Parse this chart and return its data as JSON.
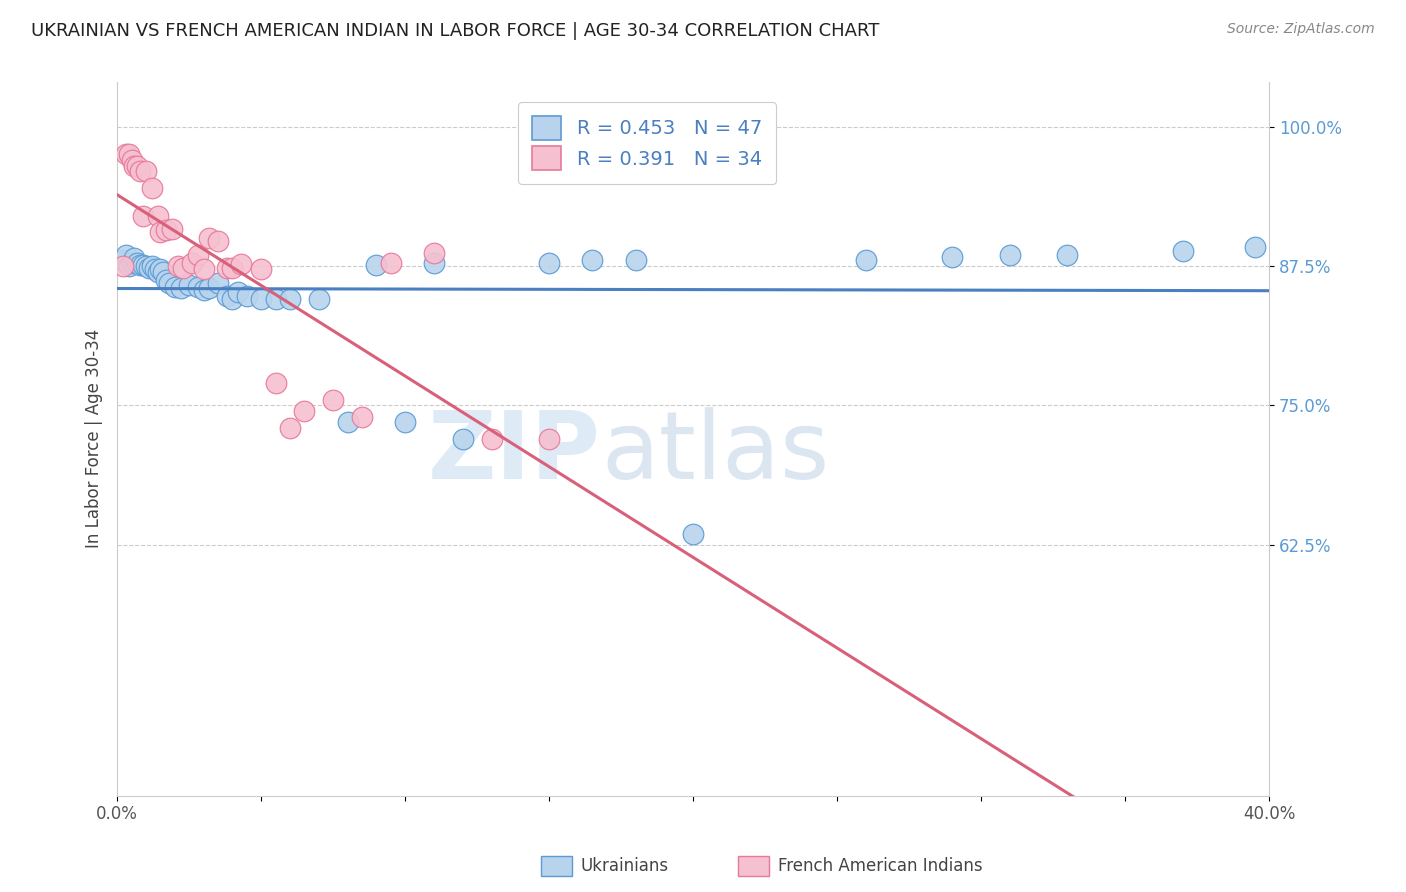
{
  "title": "UKRAINIAN VS FRENCH AMERICAN INDIAN IN LABOR FORCE | AGE 30-34 CORRELATION CHART",
  "source": "Source: ZipAtlas.com",
  "ylabel": "In Labor Force | Age 30-34",
  "xlim": [
    0.0,
    0.4
  ],
  "ylim": [
    0.4,
    1.04
  ],
  "xticks": [
    0.0,
    0.05,
    0.1,
    0.15,
    0.2,
    0.25,
    0.3,
    0.35,
    0.4
  ],
  "xticklabels": [
    "0.0%",
    "",
    "",
    "",
    "",
    "",
    "",
    "",
    "40.0%"
  ],
  "yticks": [
    0.625,
    0.75,
    0.875,
    1.0
  ],
  "yticklabels": [
    "62.5%",
    "75.0%",
    "87.5%",
    "100.0%"
  ],
  "legend_r1": "R = 0.453   N = 47",
  "legend_r2": "R = 0.391   N = 34",
  "watermark_zip": "ZIP",
  "watermark_atlas": "atlas",
  "blue_fill": "#b8d4ed",
  "pink_fill": "#f5c0d0",
  "blue_edge": "#5b9bd5",
  "pink_edge": "#e8799a",
  "blue_line": "#4a7fc1",
  "pink_line": "#d9607a",
  "legend_text_color": "#4a7fc1",
  "ytick_color": "#5b9bd5",
  "ukrainians_x": [
    0.002,
    0.003,
    0.004,
    0.005,
    0.006,
    0.007,
    0.008,
    0.009,
    0.01,
    0.011,
    0.012,
    0.013,
    0.014,
    0.015,
    0.016,
    0.017,
    0.018,
    0.02,
    0.022,
    0.025,
    0.028,
    0.03,
    0.032,
    0.035,
    0.038,
    0.04,
    0.042,
    0.045,
    0.05,
    0.055,
    0.06,
    0.07,
    0.08,
    0.09,
    0.1,
    0.11,
    0.12,
    0.15,
    0.165,
    0.18,
    0.2,
    0.26,
    0.29,
    0.31,
    0.33,
    0.37,
    0.395
  ],
  "ukrainians_y": [
    0.88,
    0.885,
    0.875,
    0.878,
    0.882,
    0.878,
    0.876,
    0.876,
    0.875,
    0.873,
    0.875,
    0.872,
    0.87,
    0.872,
    0.87,
    0.862,
    0.86,
    0.856,
    0.855,
    0.858,
    0.856,
    0.853,
    0.855,
    0.86,
    0.848,
    0.845,
    0.852,
    0.848,
    0.845,
    0.845,
    0.845,
    0.845,
    0.735,
    0.876,
    0.735,
    0.878,
    0.72,
    0.878,
    0.88,
    0.88,
    0.635,
    0.88,
    0.883,
    0.885,
    0.885,
    0.888,
    0.892
  ],
  "french_x": [
    0.002,
    0.003,
    0.004,
    0.005,
    0.006,
    0.007,
    0.008,
    0.009,
    0.01,
    0.012,
    0.014,
    0.015,
    0.017,
    0.019,
    0.021,
    0.023,
    0.026,
    0.028,
    0.03,
    0.032,
    0.035,
    0.038,
    0.04,
    0.043,
    0.05,
    0.055,
    0.06,
    0.065,
    0.075,
    0.085,
    0.095,
    0.11,
    0.13,
    0.15
  ],
  "french_y": [
    0.875,
    0.975,
    0.975,
    0.97,
    0.965,
    0.965,
    0.96,
    0.92,
    0.96,
    0.945,
    0.92,
    0.905,
    0.907,
    0.908,
    0.875,
    0.873,
    0.878,
    0.885,
    0.872,
    0.9,
    0.897,
    0.873,
    0.873,
    0.877,
    0.872,
    0.77,
    0.73,
    0.745,
    0.755,
    0.74,
    0.878,
    0.887,
    0.72,
    0.72
  ]
}
